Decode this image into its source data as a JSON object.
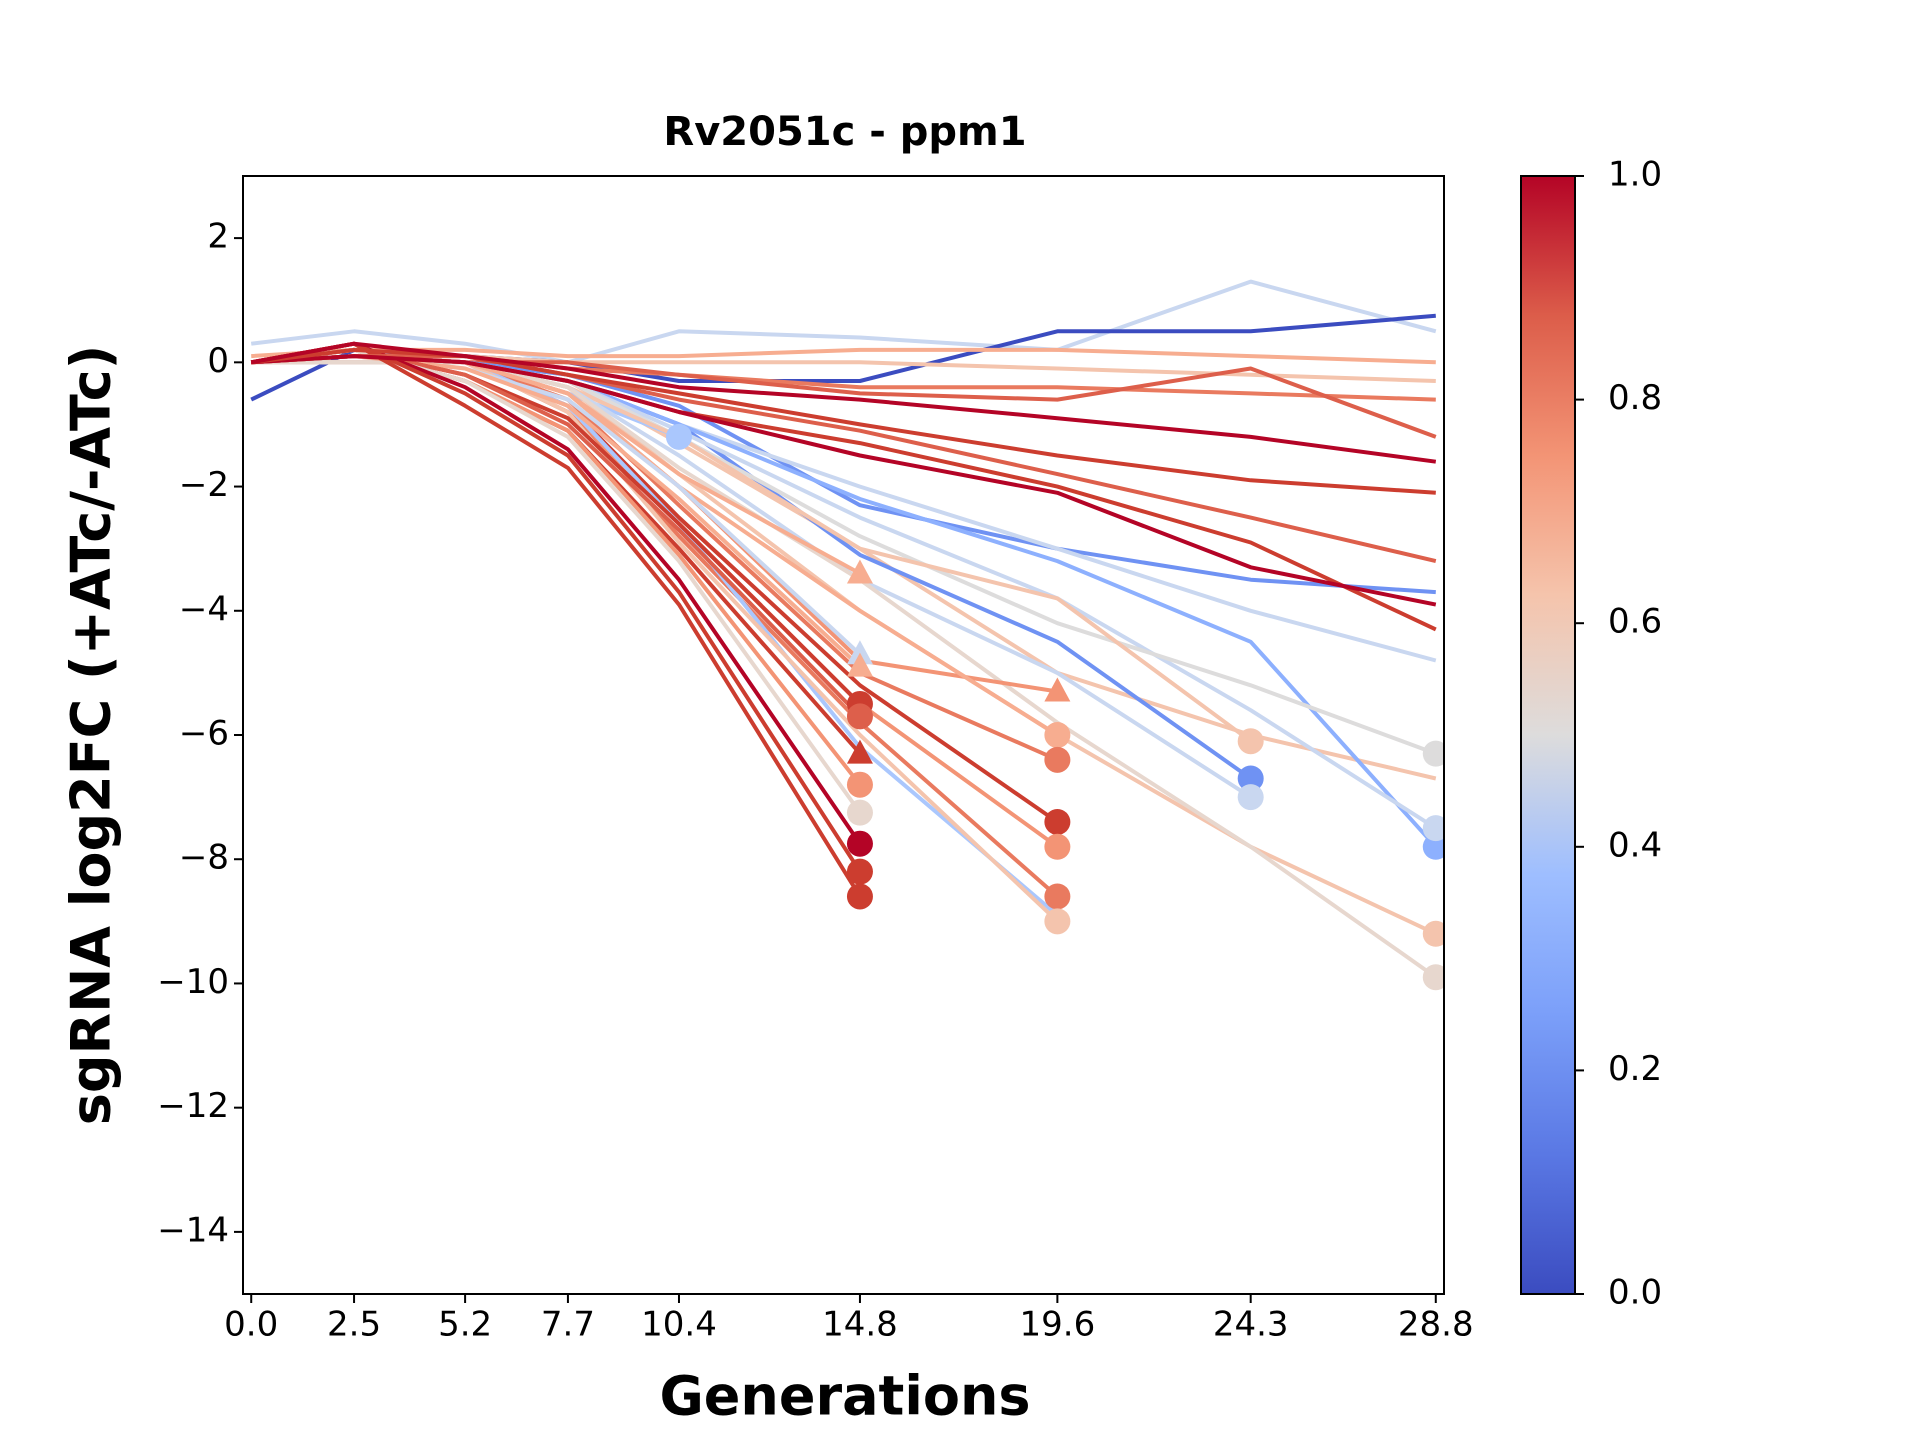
{
  "chart_data": {
    "type": "line",
    "title": "Rv2051c - ppm1",
    "x_label": "Generations",
    "y_label": "sgRNA log2FC (+ATc/-ATc)",
    "x": [
      0.0,
      2.5,
      5.2,
      7.7,
      10.4,
      14.8,
      19.6,
      24.3,
      28.8
    ],
    "xlim": [
      -0.2,
      29.0
    ],
    "xticks": [
      {
        "value": 0,
        "label": "0.0"
      },
      2.5,
      5.2,
      7.7,
      10.4,
      14.8,
      19.6,
      24.3,
      28.8
    ],
    "ylim": [
      -15,
      3
    ],
    "yticks": [
      {
        "value": -14,
        "label": "−14"
      },
      {
        "value": -12,
        "label": "−12"
      },
      {
        "value": -10,
        "label": "−10"
      },
      {
        "value": -8,
        "label": "−8"
      },
      {
        "value": -6,
        "label": "−6"
      },
      {
        "value": -4,
        "label": "−4"
      },
      {
        "value": -2,
        "label": "−2"
      },
      0,
      2
    ],
    "colorbar": {
      "lim": [
        0,
        1
      ],
      "ticks": [
        {
          "value": 0,
          "label": "0.0"
        },
        0.2,
        0.4,
        0.6,
        0.8,
        {
          "value": 1,
          "label": "1.0"
        }
      ]
    },
    "series": [
      {
        "color": "#c9d7f0",
        "values": [
          0.3,
          0.5,
          0.3,
          0,
          0.5,
          0.4,
          0.2,
          1.3,
          0.5
        ],
        "marker": null
      },
      {
        "color": "#3b4cc0",
        "values": [
          -0.6,
          0.2,
          0.1,
          0,
          -0.3,
          -0.3,
          0.5,
          0.5,
          0.75
        ],
        "marker": null
      },
      {
        "color": "#f4c4ad",
        "values": [
          0,
          0.1,
          0.1,
          0,
          0,
          0,
          -0.1,
          -0.2,
          -0.3
        ],
        "marker": null
      },
      {
        "color": "#f7ad90",
        "values": [
          0.1,
          0.2,
          0.2,
          0.1,
          0.1,
          0.2,
          0.2,
          0.1,
          0
        ],
        "marker": null
      },
      {
        "color": "#e97a5f",
        "values": [
          0,
          0.1,
          0.1,
          -0.1,
          -0.2,
          -0.4,
          -0.4,
          -0.5,
          -0.6
        ],
        "marker": null
      },
      {
        "color": "#dd5f4b",
        "values": [
          0,
          0.1,
          0,
          0,
          -0.2,
          -0.5,
          -0.6,
          -0.1,
          -1.2
        ],
        "marker": null
      },
      {
        "color": "#6f92f3",
        "values": [
          0,
          0.1,
          0,
          -0.2,
          -0.7,
          -2.3,
          -3,
          -3.5,
          -3.7
        ],
        "marker": null
      },
      {
        "color": "#c9d7f0",
        "values": [
          0,
          0,
          0,
          -0.3,
          -1,
          -2,
          -3,
          -4,
          -4.8
        ],
        "marker": null
      },
      {
        "color": "#f4c4ad",
        "values": [
          0,
          0,
          0,
          -0.3,
          -1.3,
          -3,
          -5,
          -6,
          -6.7
        ],
        "marker": null
      },
      {
        "color": "#6f92f3",
        "values": [
          0,
          0.1,
          0,
          -0.3,
          -1,
          -3.1,
          -4.5,
          -6.7,
          null
        ],
        "marker": "o"
      },
      {
        "color": "#aac7fd",
        "values": [
          0,
          0.1,
          0,
          -0.5,
          -1.2,
          null,
          null,
          null,
          null
        ],
        "marker": "o"
      },
      {
        "color": "#8db0fe",
        "values": [
          0,
          0.1,
          0,
          -0.3,
          -1,
          -2.2,
          -3.2,
          -4.5,
          -7.8
        ],
        "marker": "o"
      },
      {
        "color": "#c9d7f0",
        "values": [
          0,
          0.1,
          0,
          -0.3,
          -1.1,
          -2.5,
          -3.8,
          -5.6,
          -7.5
        ],
        "marker": "o"
      },
      {
        "color": "#dddcdc",
        "values": [
          0,
          0,
          0,
          -0.3,
          -1.2,
          -2.8,
          -4.2,
          -5.2,
          -6.3
        ],
        "marker": "o"
      },
      {
        "color": "#f4c4ad",
        "values": [
          0,
          0,
          0,
          -0.4,
          -1.2,
          -3,
          -3.8,
          -6.1,
          null
        ],
        "marker": "o"
      },
      {
        "color": "#c9d7f0",
        "values": [
          0,
          0,
          0,
          -0.4,
          -1.5,
          -3.5,
          -5,
          -7,
          null
        ],
        "marker": "o"
      },
      {
        "color": "#f4c4ad",
        "values": [
          0,
          0,
          0,
          -0.4,
          -1.8,
          -4,
          -6,
          -7.8,
          -9.2
        ],
        "marker": "o"
      },
      {
        "color": "#e7d7ce",
        "values": [
          0,
          0,
          0,
          -0.4,
          -1.7,
          -3.5,
          -5.8,
          -7.8,
          -9.9
        ],
        "marker": "o"
      },
      {
        "color": "#f39475",
        "values": [
          0,
          0.1,
          0,
          -0.5,
          -2,
          -4.8,
          -5.3,
          null,
          null
        ],
        "marker": "^"
      },
      {
        "color": "#f7ad90",
        "values": [
          0,
          0.1,
          0,
          -0.5,
          -2,
          -4,
          -6,
          null,
          null
        ],
        "marker": "o"
      },
      {
        "color": "#e97a5f",
        "values": [
          0,
          0.1,
          0,
          -0.6,
          -2.3,
          -5,
          -6.4,
          null,
          null
        ],
        "marker": "o"
      },
      {
        "color": "#cc3d2f",
        "values": [
          0,
          0.1,
          0,
          -0.7,
          -2.5,
          -5.2,
          -7.4,
          null,
          null
        ],
        "marker": "o"
      },
      {
        "color": "#f39475",
        "values": [
          0,
          0.1,
          0,
          -0.8,
          -2.6,
          -5.5,
          -7.8,
          null,
          null
        ],
        "marker": "o"
      },
      {
        "color": "#e97a5f",
        "values": [
          0,
          0.1,
          0,
          -0.8,
          -2.8,
          -5.8,
          -8.6,
          null,
          null
        ],
        "marker": "o"
      },
      {
        "color": "#aac7fd",
        "values": [
          0,
          0.1,
          0,
          -0.7,
          -2.6,
          -6.2,
          -8.9,
          null,
          null
        ],
        "marker": null
      },
      {
        "color": "#f4c4ad",
        "values": [
          0,
          0.1,
          0,
          -0.8,
          -2.9,
          -6,
          -9,
          null,
          null
        ],
        "marker": "o"
      },
      {
        "color": "#f7ad90",
        "values": [
          0,
          0.1,
          0,
          -0.5,
          -1.8,
          -3.4,
          null,
          null,
          null
        ],
        "marker": "^"
      },
      {
        "color": "#c9d7f0",
        "values": [
          0,
          0.1,
          -0.1,
          -0.6,
          -2,
          -4.7,
          null,
          null,
          null
        ],
        "marker": "^"
      },
      {
        "color": "#f7ad90",
        "values": [
          0,
          0.1,
          -0.1,
          -0.7,
          -2.2,
          -4.9,
          null,
          null,
          null
        ],
        "marker": "^"
      },
      {
        "color": "#cc3d2f",
        "values": [
          0,
          0.2,
          -0.2,
          -0.9,
          -2.6,
          -5.5,
          null,
          null,
          null
        ],
        "marker": "o"
      },
      {
        "color": "#dd5f4b",
        "values": [
          0,
          0.2,
          -0.2,
          -1,
          -2.7,
          -5.7,
          null,
          null,
          null
        ],
        "marker": "o"
      },
      {
        "color": "#cc3d2f",
        "values": [
          0,
          0.2,
          -0.3,
          -1.1,
          -3,
          -6.3,
          null,
          null,
          null
        ],
        "marker": "^"
      },
      {
        "color": "#f39475",
        "values": [
          0,
          0.2,
          -0.3,
          -1.1,
          -3.1,
          -6.8,
          null,
          null,
          null
        ],
        "marker": "o"
      },
      {
        "color": "#e7d7ce",
        "values": [
          0,
          0.2,
          -0.3,
          -1.2,
          -3.2,
          -7.25,
          null,
          null,
          null
        ],
        "marker": "o"
      },
      {
        "color": "#b40426",
        "values": [
          0,
          0.3,
          -0.4,
          -1.4,
          -3.5,
          -7.75,
          null,
          null,
          null
        ],
        "marker": "o"
      },
      {
        "color": "#cc3d2f",
        "values": [
          0,
          0.3,
          -0.5,
          -1.5,
          -3.7,
          -8.2,
          null,
          null,
          null
        ],
        "marker": "o"
      },
      {
        "color": "#cc3d2f",
        "values": [
          0,
          0.3,
          -0.7,
          -1.7,
          -3.9,
          -8.6,
          null,
          null,
          null
        ],
        "marker": "o"
      },
      {
        "color": "#dd5f4b",
        "values": [
          0,
          0.1,
          0.1,
          -0.2,
          -0.6,
          -1.1,
          -1.8,
          -2.5,
          -3.2
        ],
        "marker": null
      },
      {
        "color": "#cc3d2f",
        "values": [
          0,
          0.1,
          0,
          -0.3,
          -0.8,
          -1.3,
          -2,
          -2.9,
          -4.3
        ],
        "marker": null
      },
      {
        "color": "#b40426",
        "values": [
          0,
          0.1,
          0,
          -0.3,
          -0.8,
          -1.5,
          -2.1,
          -3.3,
          -3.9
        ],
        "marker": null
      },
      {
        "color": "#cc3d2f",
        "values": [
          0,
          0.2,
          0.1,
          -0.2,
          -0.5,
          -1,
          -1.5,
          -1.9,
          -2.1
        ],
        "marker": null
      },
      {
        "color": "#b40426",
        "values": [
          0,
          0.3,
          0.1,
          -0.1,
          -0.4,
          -0.6,
          -0.9,
          -1.2,
          -1.6
        ],
        "marker": null
      }
    ]
  }
}
